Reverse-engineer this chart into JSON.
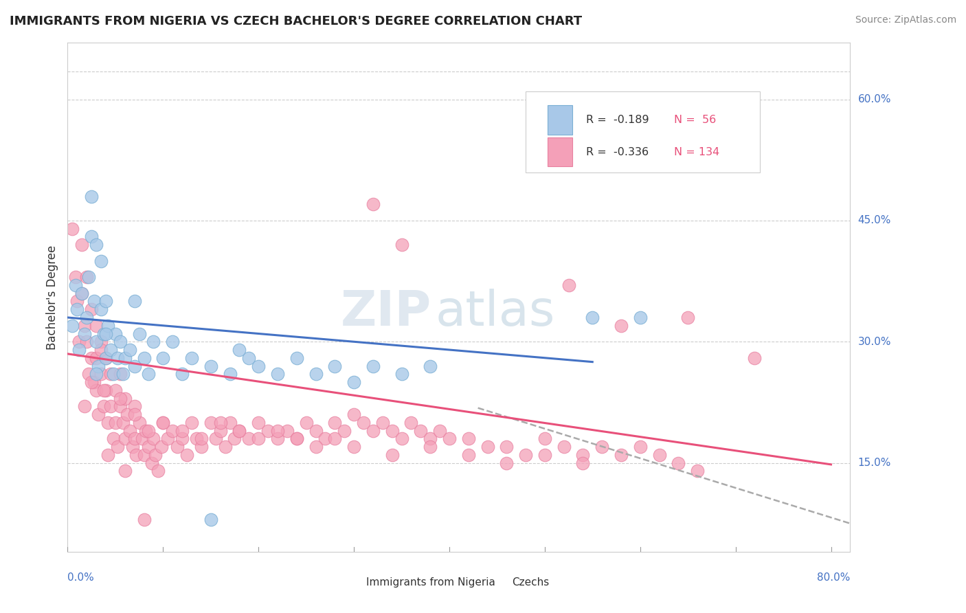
{
  "title": "IMMIGRANTS FROM NIGERIA VS CZECH BACHELOR'S DEGREE CORRELATION CHART",
  "source": "Source: ZipAtlas.com",
  "ylabel": "Bachelor's Degree",
  "y_ticks": [
    0.15,
    0.3,
    0.45,
    0.6
  ],
  "y_tick_labels": [
    "15.0%",
    "30.0%",
    "45.0%",
    "60.0%"
  ],
  "xlim": [
    0.0,
    0.82
  ],
  "ylim": [
    0.04,
    0.67
  ],
  "legend_r1": "R =  -0.189",
  "legend_n1": "N =  56",
  "legend_r2": "R =  -0.336",
  "legend_n2": "N = 134",
  "blue_fill": "#A8C8E8",
  "blue_edge": "#7AAFD4",
  "pink_fill": "#F4A0B8",
  "pink_edge": "#E880A0",
  "trend_blue_color": "#4472C4",
  "trend_pink_color": "#E8507A",
  "trend_dashed_color": "#AAAAAA",
  "watermark_color": "#DDDDDD",
  "grid_color": "#CCCCCC",
  "label_color": "#4472C4",
  "title_color": "#222222",
  "source_color": "#888888",
  "text_color": "#333333",
  "blue_scatter_x": [
    0.005,
    0.008,
    0.01,
    0.012,
    0.015,
    0.018,
    0.02,
    0.022,
    0.025,
    0.025,
    0.028,
    0.03,
    0.03,
    0.032,
    0.035,
    0.035,
    0.038,
    0.04,
    0.04,
    0.042,
    0.045,
    0.048,
    0.05,
    0.052,
    0.055,
    0.058,
    0.06,
    0.065,
    0.07,
    0.075,
    0.08,
    0.085,
    0.09,
    0.1,
    0.11,
    0.12,
    0.13,
    0.15,
    0.17,
    0.19,
    0.2,
    0.22,
    0.24,
    0.26,
    0.28,
    0.3,
    0.32,
    0.35,
    0.38,
    0.15,
    0.55,
    0.6,
    0.18,
    0.07,
    0.04,
    0.03
  ],
  "blue_scatter_y": [
    0.32,
    0.37,
    0.34,
    0.29,
    0.36,
    0.31,
    0.33,
    0.38,
    0.48,
    0.43,
    0.35,
    0.3,
    0.42,
    0.27,
    0.34,
    0.4,
    0.31,
    0.28,
    0.35,
    0.32,
    0.29,
    0.26,
    0.31,
    0.28,
    0.3,
    0.26,
    0.28,
    0.29,
    0.27,
    0.31,
    0.28,
    0.26,
    0.3,
    0.28,
    0.3,
    0.26,
    0.28,
    0.27,
    0.26,
    0.28,
    0.27,
    0.26,
    0.28,
    0.26,
    0.27,
    0.25,
    0.27,
    0.26,
    0.27,
    0.08,
    0.33,
    0.33,
    0.29,
    0.35,
    0.31,
    0.26
  ],
  "pink_scatter_x": [
    0.005,
    0.008,
    0.01,
    0.012,
    0.015,
    0.015,
    0.018,
    0.02,
    0.02,
    0.022,
    0.025,
    0.025,
    0.028,
    0.03,
    0.03,
    0.03,
    0.032,
    0.035,
    0.035,
    0.038,
    0.04,
    0.04,
    0.042,
    0.045,
    0.045,
    0.048,
    0.05,
    0.05,
    0.052,
    0.055,
    0.055,
    0.058,
    0.06,
    0.06,
    0.062,
    0.065,
    0.068,
    0.07,
    0.07,
    0.072,
    0.075,
    0.078,
    0.08,
    0.082,
    0.085,
    0.088,
    0.09,
    0.092,
    0.095,
    0.098,
    0.1,
    0.105,
    0.11,
    0.115,
    0.12,
    0.125,
    0.13,
    0.135,
    0.14,
    0.15,
    0.155,
    0.16,
    0.165,
    0.17,
    0.175,
    0.18,
    0.19,
    0.2,
    0.21,
    0.22,
    0.23,
    0.24,
    0.25,
    0.26,
    0.27,
    0.28,
    0.29,
    0.3,
    0.31,
    0.32,
    0.33,
    0.34,
    0.35,
    0.36,
    0.37,
    0.38,
    0.39,
    0.4,
    0.42,
    0.44,
    0.46,
    0.48,
    0.5,
    0.52,
    0.54,
    0.56,
    0.58,
    0.6,
    0.62,
    0.64,
    0.66,
    0.32,
    0.35,
    0.525,
    0.58,
    0.65,
    0.72,
    0.08,
    0.042,
    0.06,
    0.035,
    0.025,
    0.018,
    0.038,
    0.055,
    0.07,
    0.085,
    0.1,
    0.12,
    0.14,
    0.16,
    0.18,
    0.2,
    0.22,
    0.24,
    0.26,
    0.28,
    0.3,
    0.34,
    0.38,
    0.42,
    0.46,
    0.5,
    0.54
  ],
  "pink_scatter_y": [
    0.44,
    0.38,
    0.35,
    0.3,
    0.42,
    0.36,
    0.32,
    0.38,
    0.3,
    0.26,
    0.34,
    0.28,
    0.25,
    0.32,
    0.28,
    0.24,
    0.21,
    0.3,
    0.26,
    0.22,
    0.28,
    0.24,
    0.2,
    0.26,
    0.22,
    0.18,
    0.24,
    0.2,
    0.17,
    0.22,
    0.26,
    0.2,
    0.23,
    0.18,
    0.21,
    0.19,
    0.17,
    0.22,
    0.18,
    0.16,
    0.2,
    0.18,
    0.16,
    0.19,
    0.17,
    0.15,
    0.18,
    0.16,
    0.14,
    0.17,
    0.2,
    0.18,
    0.19,
    0.17,
    0.18,
    0.16,
    0.2,
    0.18,
    0.17,
    0.2,
    0.18,
    0.19,
    0.17,
    0.2,
    0.18,
    0.19,
    0.18,
    0.2,
    0.19,
    0.18,
    0.19,
    0.18,
    0.2,
    0.19,
    0.18,
    0.2,
    0.19,
    0.21,
    0.2,
    0.19,
    0.2,
    0.19,
    0.18,
    0.2,
    0.19,
    0.18,
    0.19,
    0.18,
    0.18,
    0.17,
    0.17,
    0.16,
    0.18,
    0.17,
    0.16,
    0.17,
    0.16,
    0.17,
    0.16,
    0.15,
    0.14,
    0.47,
    0.42,
    0.37,
    0.32,
    0.33,
    0.28,
    0.08,
    0.16,
    0.14,
    0.29,
    0.25,
    0.22,
    0.24,
    0.23,
    0.21,
    0.19,
    0.2,
    0.19,
    0.18,
    0.2,
    0.19,
    0.18,
    0.19,
    0.18,
    0.17,
    0.18,
    0.17,
    0.16,
    0.17,
    0.16,
    0.15,
    0.16,
    0.15
  ],
  "blue_trend_x": [
    0.0,
    0.55
  ],
  "blue_trend_y": [
    0.33,
    0.275
  ],
  "pink_trend_x": [
    0.0,
    0.8
  ],
  "pink_trend_y": [
    0.285,
    0.148
  ],
  "dashed_trend_x": [
    0.43,
    0.82
  ],
  "dashed_trend_y": [
    0.218,
    0.075
  ]
}
